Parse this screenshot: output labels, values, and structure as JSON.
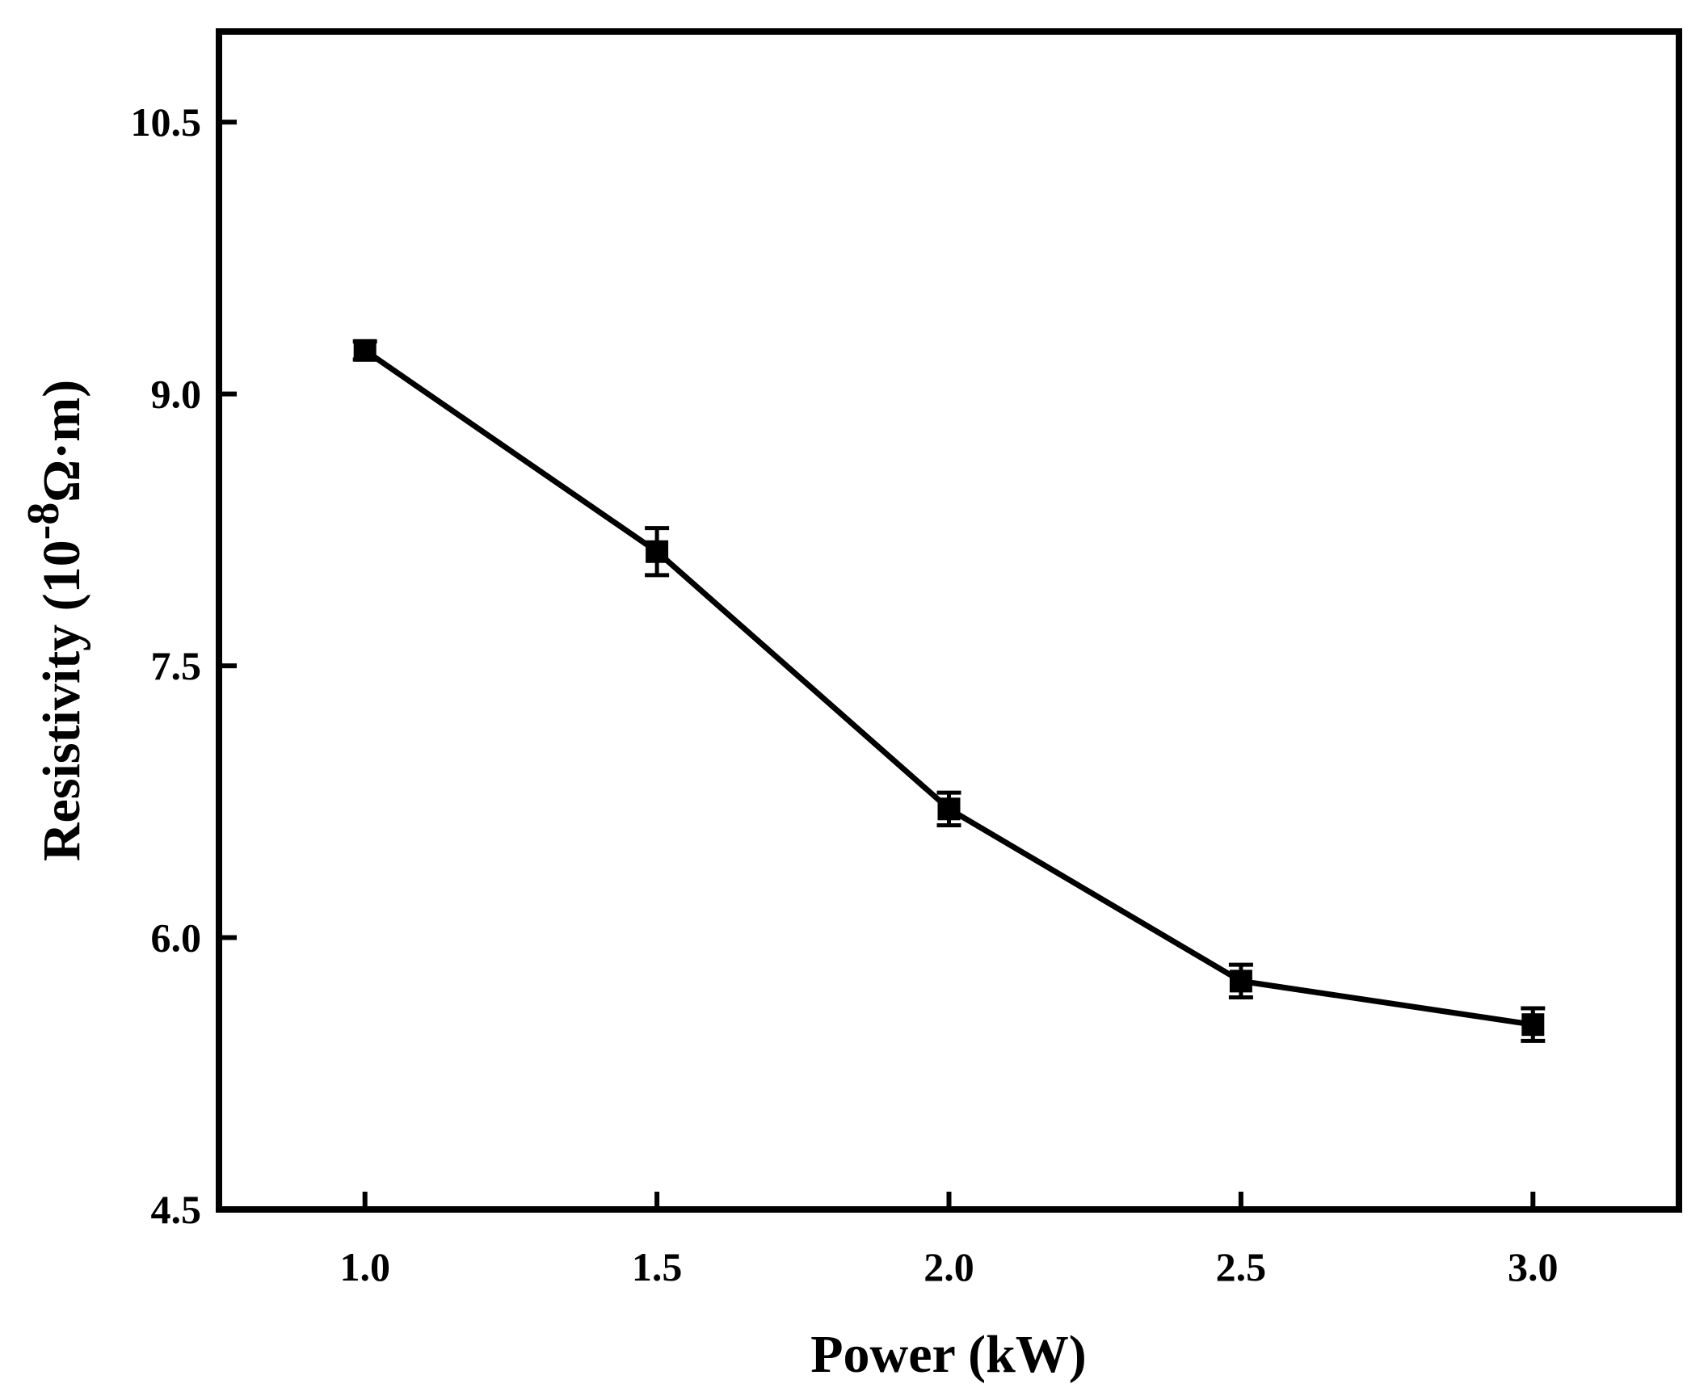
{
  "chart_data": {
    "type": "line",
    "title": "",
    "xlabel": "Power (kW)",
    "ylabel_main": "Resistivity (10",
    "ylabel_exponent": "-8",
    "ylabel_unit": "Ω·m)",
    "xlim": [
      0.75,
      3.25
    ],
    "ylim": [
      4.5,
      11.0
    ],
    "xticks": [
      1.0,
      1.5,
      2.0,
      2.5,
      3.0
    ],
    "xtick_labels": [
      "1.0",
      "1.5",
      "2.0",
      "2.5",
      "3.0"
    ],
    "yticks": [
      4.5,
      6.0,
      7.5,
      9.0,
      10.5
    ],
    "ytick_labels": [
      "4.5",
      "6.0",
      "7.5",
      "9.0",
      "10.5"
    ],
    "grid": false,
    "legend": null,
    "series": [
      {
        "name": "Resistivity",
        "color": "#000000",
        "marker": "square",
        "x": [
          1.0,
          1.5,
          2.0,
          2.5,
          3.0
        ],
        "y": [
          9.24,
          8.13,
          6.71,
          5.76,
          5.52
        ],
        "yerr": [
          0.05,
          0.13,
          0.09,
          0.09,
          0.09
        ]
      }
    ]
  }
}
